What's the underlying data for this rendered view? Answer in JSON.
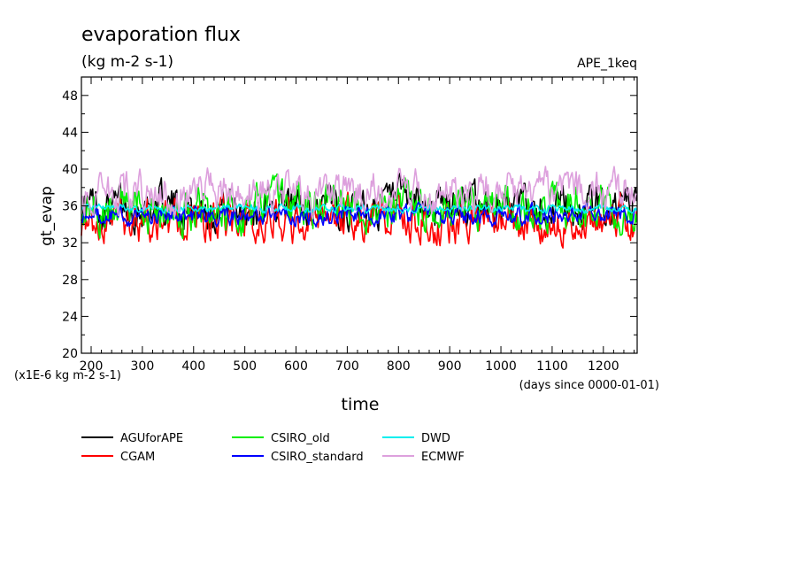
{
  "chart_data": {
    "type": "line",
    "title": "evaporation flux",
    "subtitle": "(kg m-2 s-1)",
    "run_label": "APE_1keq",
    "ylabel": "gt_evap",
    "xlabel": "time",
    "x_unit_note": "(days since 0000-01-01)",
    "y_unit_note": "(x1E-6 kg m-2 s-1)",
    "xlim": [
      181,
      1266
    ],
    "ylim": [
      20,
      50
    ],
    "xticks_major": [
      200,
      300,
      400,
      500,
      600,
      700,
      800,
      900,
      1000,
      1100,
      1200
    ],
    "yticks_labeled": [
      20,
      24,
      28,
      32,
      36,
      40,
      44,
      48
    ],
    "grid": false,
    "legend_position": "bottom",
    "series": [
      {
        "name": "AGUforAPE",
        "color": "#000000",
        "mean": 36.0,
        "amp": 1.6
      },
      {
        "name": "CGAM",
        "color": "#ff0000",
        "mean": 34.3,
        "amp": 1.6
      },
      {
        "name": "CSIRO_old",
        "color": "#00ee00",
        "mean": 35.8,
        "amp": 1.7
      },
      {
        "name": "CSIRO_standard",
        "color": "#0000ff",
        "mean": 35.0,
        "amp": 0.7
      },
      {
        "name": "DWD",
        "color": "#00eeee",
        "mean": 35.7,
        "amp": 0.3
      },
      {
        "name": "ECMWF",
        "color": "#dda0dd",
        "mean": 37.5,
        "amp": 1.5
      }
    ]
  }
}
